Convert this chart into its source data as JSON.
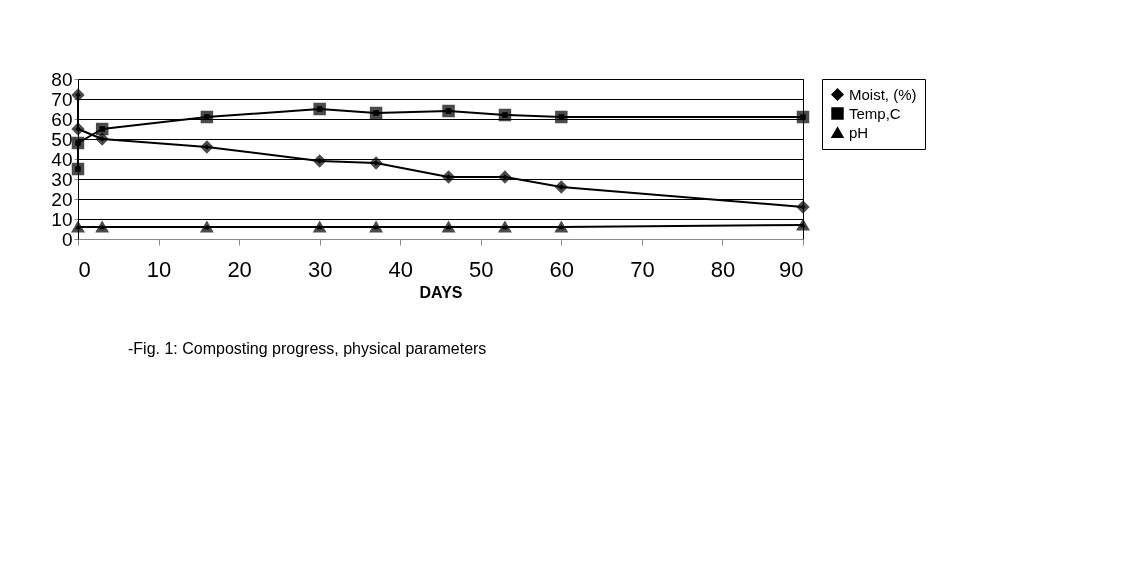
{
  "chart_data": {
    "type": "line",
    "xlabel": "DAYS",
    "annotations": [
      "-Fig. 1: Composting progress, physical parameters"
    ],
    "xlim": [
      0,
      90
    ],
    "xticks": [
      0,
      10,
      20,
      30,
      40,
      50,
      60,
      70,
      80,
      90
    ],
    "ylim": [
      0,
      80
    ],
    "yticks": [
      0,
      10,
      20,
      30,
      40,
      50,
      60,
      70,
      80
    ],
    "grid": "y",
    "legend": "right",
    "line_style": "solid",
    "series": [
      {
        "name": "Moist, (%)",
        "color": "#000000",
        "marker": "diamond",
        "x": [
          0,
          0,
          3,
          16,
          30,
          37,
          46,
          53,
          60,
          90
        ],
        "values": [
          72,
          55,
          50,
          46,
          39,
          38,
          31,
          31,
          26,
          16
        ]
      },
      {
        "name": "Temp,C",
        "color": "#000000",
        "marker": "square",
        "x": [
          0,
          0,
          3,
          16,
          30,
          37,
          46,
          53,
          60,
          90
        ],
        "values": [
          35,
          48,
          55,
          61,
          65,
          63,
          64,
          62,
          61,
          61
        ]
      },
      {
        "name": "pH",
        "color": "#000000",
        "marker": "triangle",
        "x": [
          0,
          3,
          16,
          30,
          37,
          46,
          53,
          60,
          90
        ],
        "values": [
          6,
          6,
          6,
          6,
          6,
          6,
          6,
          6,
          7
        ]
      }
    ]
  }
}
